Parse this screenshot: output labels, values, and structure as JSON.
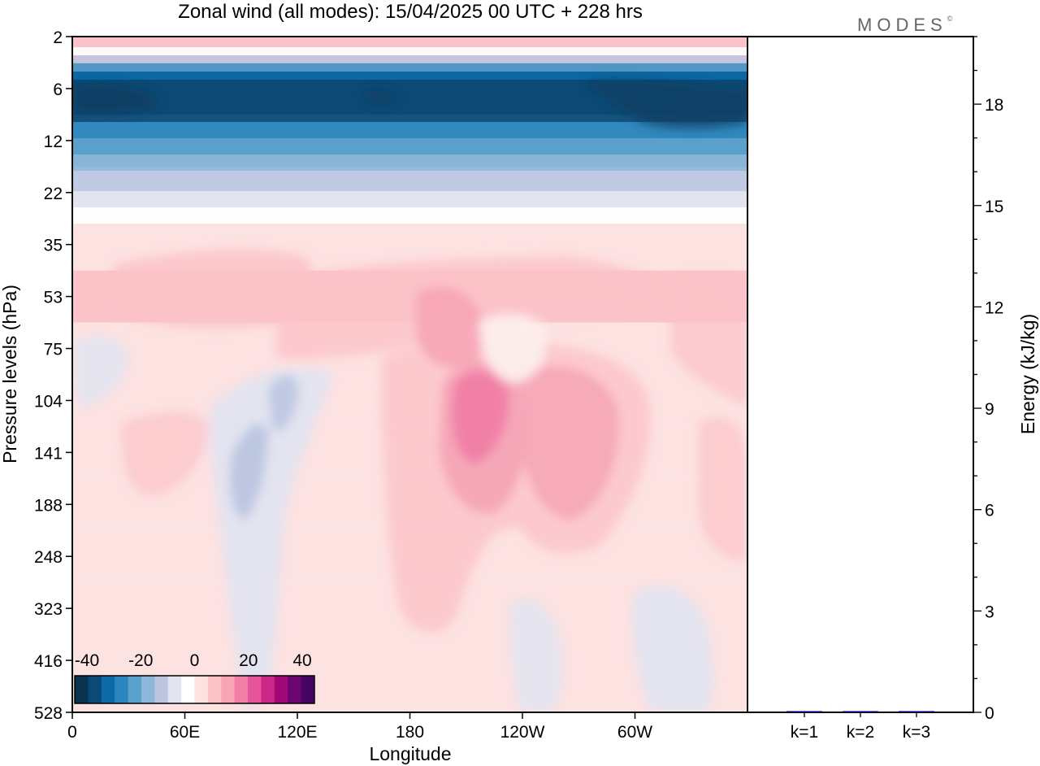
{
  "brand": {
    "logo_text": "MODES",
    "mark": "©"
  },
  "chart_data": [
    {
      "type": "heatmap",
      "title": "Zonal wind (all modes):  15/04/2025  00 UTC  + 228 hrs",
      "xlabel": "Longitude",
      "ylabel": "Pressure levels (hPa)",
      "x_ticks": [
        {
          "label": "0",
          "lon": 0
        },
        {
          "label": "60E",
          "lon": 60
        },
        {
          "label": "120E",
          "lon": 120
        },
        {
          "label": "180",
          "lon": 180
        },
        {
          "label": "120W",
          "lon": 240
        },
        {
          "label": "60W",
          "lon": 300
        }
      ],
      "xlim": [
        0,
        360
      ],
      "y_ticks": [
        2,
        6,
        12,
        22,
        35,
        53,
        75,
        104,
        141,
        188,
        248,
        323,
        416,
        528
      ],
      "colorbar": {
        "labels": [
          "-40",
          "-20",
          "0",
          "20",
          "40"
        ],
        "levels": [
          -40,
          -35,
          -30,
          -25,
          -20,
          -15,
          -10,
          -5,
          0,
          5,
          10,
          15,
          20,
          25,
          30,
          35,
          40
        ],
        "colors": [
          "#0a3350",
          "#0c4a76",
          "#0b6ba8",
          "#2c86bd",
          "#5aa0cc",
          "#8db6d8",
          "#bcc6e0",
          "#e2e4f0",
          "#ffffff",
          "#fde2e2",
          "#fbc3c8",
          "#f6a4b6",
          "#f07ea6",
          "#e6559a",
          "#cc2688",
          "#a00a78",
          "#6c0670",
          "#460560"
        ]
      },
      "zonal_mean_wind_by_level": [
        {
          "p": 2,
          "u": 8
        },
        {
          "p": 6,
          "u": -38
        },
        {
          "p": 12,
          "u": -22
        },
        {
          "p": 22,
          "u": -8
        },
        {
          "p": 35,
          "u": 2
        },
        {
          "p": 53,
          "u": 6
        },
        {
          "p": 75,
          "u": 4
        },
        {
          "p": 104,
          "u": 3
        },
        {
          "p": 141,
          "u": 4
        },
        {
          "p": 188,
          "u": 3
        },
        {
          "p": 248,
          "u": 2
        },
        {
          "p": 323,
          "u": 1
        },
        {
          "p": 416,
          "u": 1
        },
        {
          "p": 528,
          "u": 0
        }
      ]
    },
    {
      "type": "bar",
      "ylabel": "Energy (kJ/kg)",
      "categories": [
        "k=1",
        "k=2",
        "k=3"
      ],
      "values": [
        0.03,
        0.02,
        0.02
      ],
      "ylim": [
        0,
        20
      ],
      "y_ticks": [
        0,
        3,
        6,
        9,
        12,
        15,
        18
      ],
      "bar_color": "#000080"
    }
  ]
}
